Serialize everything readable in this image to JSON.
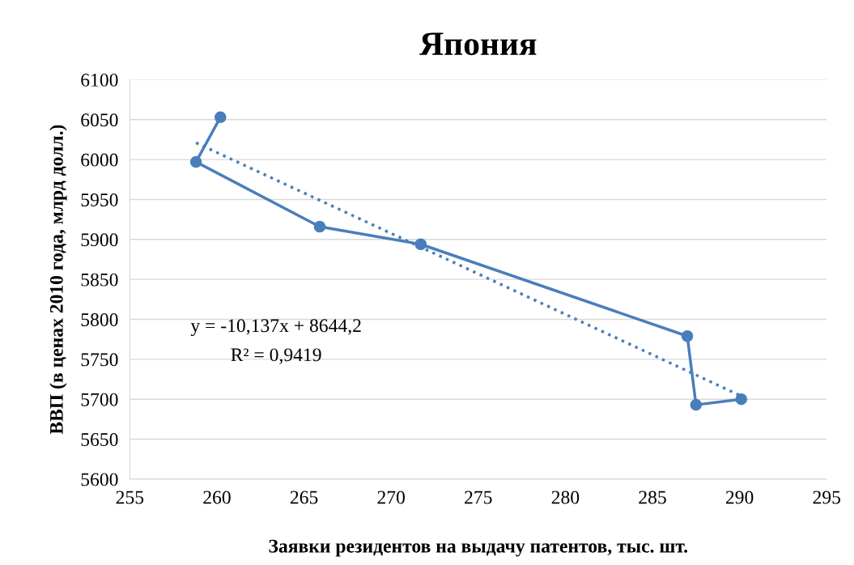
{
  "chart_data": {
    "type": "line",
    "title": "Япония",
    "xlabel": "Заявки резидентов на выдачу патентов, тыс. шт.",
    "ylabel": "ВВП (в ценах 2010 года, млрд долл.)",
    "series": [
      {
        "color": "#4a7ebb",
        "marker": "circle",
        "line_style": "solid",
        "x": [
          260.2,
          258.8,
          265.9,
          271.7,
          287.0,
          287.5,
          290.1
        ],
        "values": [
          6053,
          5997,
          5916,
          5894,
          5779,
          5693,
          5700
        ]
      },
      {
        "type": "line",
        "color": "#4a7ebb",
        "marker": "none",
        "line_style": "dotted",
        "x": [
          258.8,
          290.1
        ],
        "values": [
          6021,
          5704
        ]
      }
    ],
    "annotations": [
      "y = -10,137x + 8644,2",
      "R² = 0,9419"
    ],
    "xlim": [
      255,
      295
    ],
    "xticks": [
      255,
      260,
      265,
      270,
      275,
      280,
      285,
      290,
      295
    ],
    "ylim": [
      5600,
      6100
    ],
    "yticks": [
      5600,
      5650,
      5700,
      5750,
      5800,
      5850,
      5900,
      5950,
      6000,
      6050,
      6100
    ],
    "grid": "y",
    "legend": false
  }
}
